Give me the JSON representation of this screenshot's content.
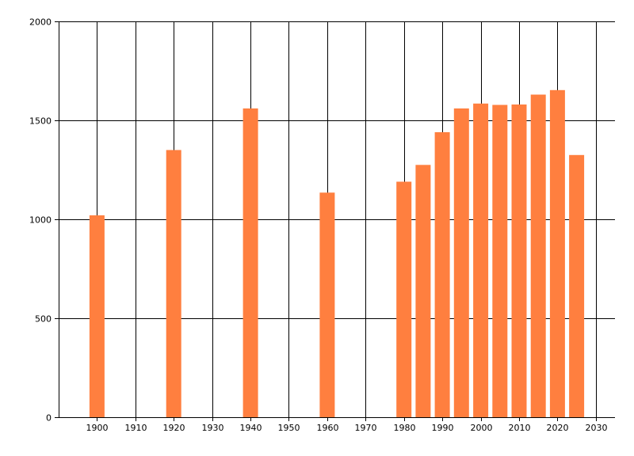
{
  "chart_data": {
    "type": "bar",
    "title": "",
    "xlabel": "",
    "ylabel": "",
    "x": [
      1900,
      1920,
      1940,
      1960,
      1980,
      1985,
      1990,
      1995,
      2000,
      2005,
      2010,
      2015,
      2020,
      2025
    ],
    "values": [
      1020,
      1350,
      1560,
      1135,
      1190,
      1275,
      1440,
      1560,
      1585,
      1578,
      1580,
      1630,
      1653,
      1325
    ],
    "xlim": [
      1890,
      2035
    ],
    "ylim": [
      0,
      2000
    ],
    "x_ticks": [
      "1900",
      "1910",
      "1920",
      "1930",
      "1940",
      "1950",
      "1960",
      "1970",
      "1980",
      "1990",
      "2000",
      "2010",
      "2020",
      "2030"
    ],
    "y_ticks": [
      "0",
      "500",
      "1000",
      "1500",
      "2000"
    ],
    "bar_color": "#ff7f3f",
    "grid": true,
    "legend": "none"
  }
}
